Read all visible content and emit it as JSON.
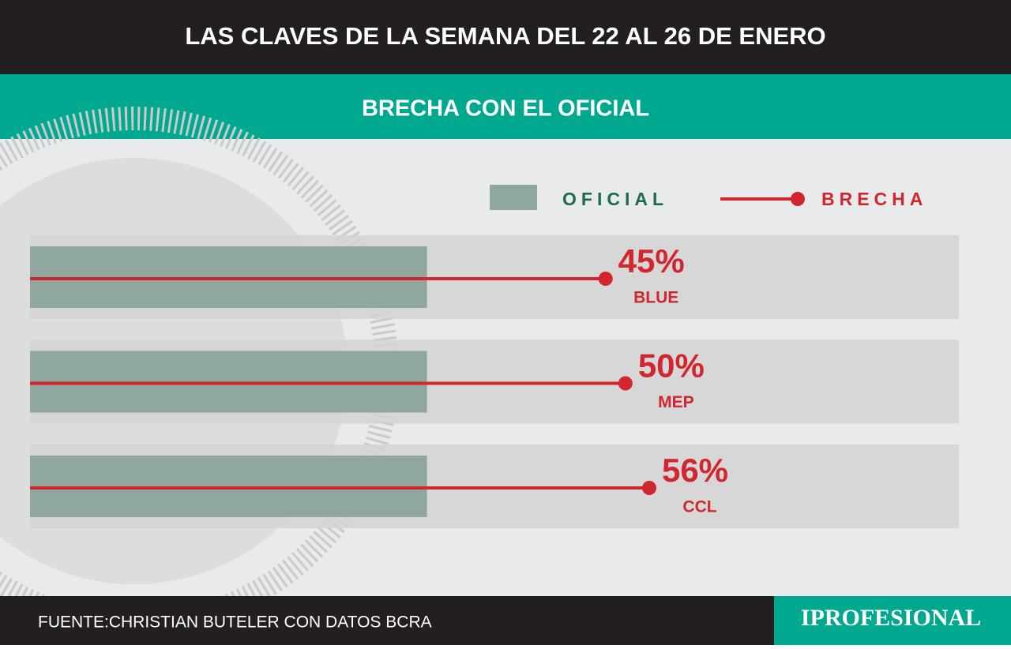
{
  "chart_data": {
    "type": "bar",
    "title": "LAS CLAVES DE LA SEMANA DEL 22 AL 26 DE ENERO",
    "subtitle": "BRECHA CON EL OFICIAL",
    "categories": [
      "BLUE",
      "MEP",
      "CCL"
    ],
    "series": [
      {
        "name": "OFICIAL",
        "color": "#8fa79e",
        "values": [
          100,
          100,
          100
        ]
      },
      {
        "name": "BRECHA",
        "color": "#d1262e",
        "values": [
          45,
          50,
          56
        ],
        "value_labels": [
          "45%",
          "50%",
          "56%"
        ]
      }
    ],
    "xlim": [
      0,
      234
    ],
    "source": "FUENTE:CHRISTIAN BUTELER  CON DATOS BCRA",
    "logo": "IPROFESIONAL"
  }
}
